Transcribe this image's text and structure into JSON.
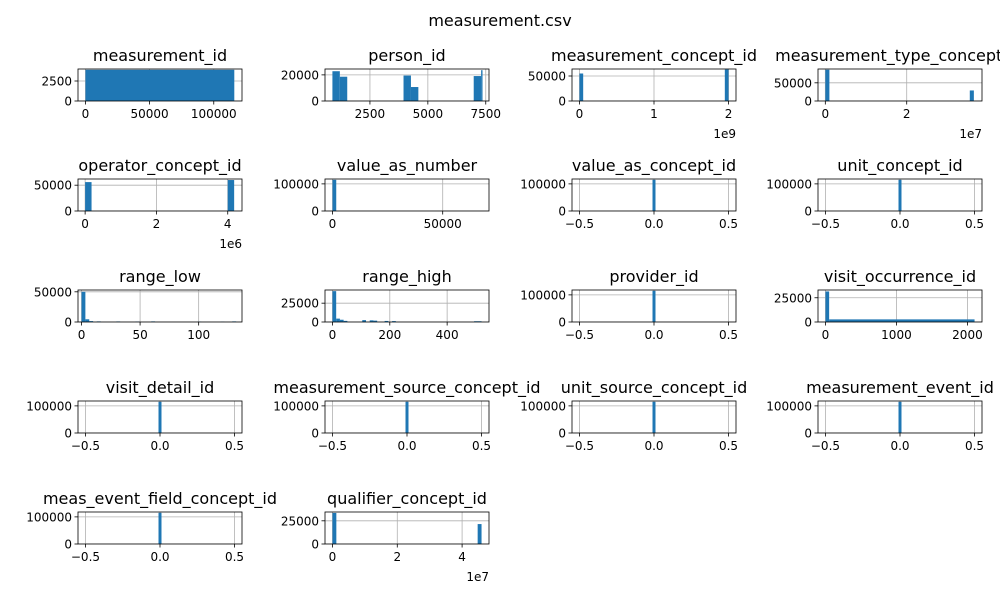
{
  "title": "measurement.csv",
  "colors": {
    "bar": "#1f77b4",
    "grid": "#b0b0b0",
    "axis": "#000000",
    "background": "#ffffff"
  },
  "chart_data": [
    {
      "type": "bar",
      "title": "measurement_id",
      "xlim": [
        -5800,
        122000
      ],
      "ylim": [
        0,
        4000
      ],
      "xticks": [
        0,
        50000,
        100000
      ],
      "xtick_labels": [
        "0",
        "50000",
        "100000"
      ],
      "yticks": [
        0,
        2500
      ],
      "ytick_labels": [
        "0",
        "2500"
      ],
      "bins": [
        [
          0,
          116000,
          3900
        ]
      ]
    },
    {
      "type": "bar",
      "title": "person_id",
      "xlim": [
        560,
        7640
      ],
      "ylim": [
        0,
        24500
      ],
      "xticks": [
        2500,
        5000,
        7500
      ],
      "xtick_labels": [
        "2500",
        "5000",
        "7500"
      ],
      "yticks": [
        0,
        20000
      ],
      "ytick_labels": [
        "0",
        "20000"
      ],
      "bins": [
        [
          880,
          1200,
          22800
        ],
        [
          1200,
          1520,
          18600
        ],
        [
          3950,
          4270,
          19500
        ],
        [
          4270,
          4590,
          10700
        ],
        [
          6980,
          7300,
          19100
        ],
        [
          7300,
          7330,
          23600
        ]
      ]
    },
    {
      "type": "bar",
      "title": "measurement_concept_id",
      "xlim": [
        -0.1,
        2.1
      ],
      "ylim": [
        0,
        64000
      ],
      "xticks": [
        0,
        1,
        2
      ],
      "xtick_labels": [
        "0",
        "1",
        "2"
      ],
      "x_offset_label": "1e9",
      "yticks": [
        0,
        50000
      ],
      "ytick_labels": [
        "0",
        "50000"
      ],
      "bins": [
        [
          0,
          0.05,
          55000
        ],
        [
          1.95,
          2.0,
          63000
        ]
      ]
    },
    {
      "type": "bar",
      "title": "measurement_type_concept_id",
      "xlim": [
        -0.18,
        3.85
      ],
      "ylim": [
        0,
        88000
      ],
      "xticks": [
        0,
        2
      ],
      "xtick_labels": [
        "0",
        "2"
      ],
      "x_offset_label": "1e7",
      "yticks": [
        0,
        50000
      ],
      "ytick_labels": [
        "0",
        "50000"
      ],
      "bins": [
        [
          0,
          0.1,
          86000
        ],
        [
          3.55,
          3.65,
          29000
        ]
      ]
    },
    {
      "type": "bar",
      "title": "operator_concept_id",
      "xlim": [
        -0.2,
        4.4
      ],
      "ylim": [
        0,
        62000
      ],
      "xticks": [
        0,
        2,
        4
      ],
      "xtick_labels": [
        "0",
        "2",
        "4"
      ],
      "x_offset_label": "1e6",
      "yticks": [
        0,
        50000
      ],
      "ytick_labels": [
        "0",
        "50000"
      ],
      "bins": [
        [
          0,
          0.18,
          56000
        ],
        [
          4.0,
          4.18,
          60000
        ]
      ]
    },
    {
      "type": "bar",
      "title": "value_as_number",
      "xlim": [
        -3400,
        71000
      ],
      "ylim": [
        0,
        118000
      ],
      "xticks": [
        0,
        50000
      ],
      "xtick_labels": [
        "0",
        "50000"
      ],
      "yticks": [
        0,
        100000
      ],
      "ytick_labels": [
        "0",
        "100000"
      ],
      "bins": [
        [
          0,
          1700,
          115000
        ]
      ]
    },
    {
      "type": "bar",
      "title": "value_as_concept_id",
      "xlim": [
        -0.55,
        0.55
      ],
      "ylim": [
        0,
        118000
      ],
      "xticks": [
        -0.5,
        0,
        0.5
      ],
      "xtick_labels": [
        "−0.5",
        "0.0",
        "0.5"
      ],
      "yticks": [
        0,
        100000
      ],
      "ytick_labels": [
        "0",
        "100000"
      ],
      "bins": [
        [
          -0.01,
          0.01,
          115000
        ]
      ]
    },
    {
      "type": "bar",
      "title": "unit_concept_id",
      "xlim": [
        -0.55,
        0.55
      ],
      "ylim": [
        0,
        118000
      ],
      "xticks": [
        -0.5,
        0,
        0.5
      ],
      "xtick_labels": [
        "−0.5",
        "0.0",
        "0.5"
      ],
      "yticks": [
        0,
        100000
      ],
      "ytick_labels": [
        "0",
        "100000"
      ],
      "bins": [
        [
          -0.01,
          0.01,
          115000
        ]
      ]
    },
    {
      "type": "bar",
      "title": "range_low",
      "xlim": [
        -3,
        137
      ],
      "ylim": [
        0,
        53000
      ],
      "xticks": [
        0,
        50,
        100
      ],
      "xtick_labels": [
        "0",
        "50",
        "100"
      ],
      "yticks": [
        0,
        50000
      ],
      "ytick_labels": [
        "0",
        "50000"
      ],
      "bins": [
        [
          0,
          3.3,
          50000
        ],
        [
          3.3,
          6.6,
          4500
        ],
        [
          6.6,
          9.9,
          1500
        ],
        [
          13,
          16.4,
          1000
        ],
        [
          29.7,
          33,
          900
        ],
        [
          46,
          49.4,
          700
        ],
        [
          59.5,
          62.8,
          1000
        ],
        [
          99,
          102.3,
          600
        ],
        [
          118.8,
          122,
          500
        ],
        [
          128.7,
          132,
          1000
        ]
      ]
    },
    {
      "type": "bar",
      "title": "range_high",
      "xlim": [
        -26,
        546
      ],
      "ylim": [
        0,
        42500
      ],
      "xticks": [
        0,
        200,
        400
      ],
      "xtick_labels": [
        "0",
        "200",
        "400"
      ],
      "yticks": [
        0,
        25000
      ],
      "ytick_labels": [
        "0",
        "25000"
      ],
      "bins": [
        [
          0,
          13,
          41000
        ],
        [
          13,
          26,
          4500
        ],
        [
          26,
          39,
          3000
        ],
        [
          39,
          52,
          1500
        ],
        [
          104,
          117,
          2500
        ],
        [
          130,
          143,
          2200
        ],
        [
          143,
          156,
          1800
        ],
        [
          182,
          195,
          1400
        ],
        [
          208,
          221,
          1200
        ],
        [
          494,
          520,
          1000
        ]
      ]
    },
    {
      "type": "bar",
      "title": "provider_id",
      "xlim": [
        -0.55,
        0.55
      ],
      "ylim": [
        0,
        118000
      ],
      "xticks": [
        -0.5,
        0,
        0.5
      ],
      "xtick_labels": [
        "−0.5",
        "0.0",
        "0.5"
      ],
      "yticks": [
        0,
        100000
      ],
      "ytick_labels": [
        "0",
        "100000"
      ],
      "bins": [
        [
          -0.01,
          0.01,
          115000
        ]
      ]
    },
    {
      "type": "bar",
      "title": "visit_occurrence_id",
      "xlim": [
        -105,
        2205
      ],
      "ylim": [
        0,
        33000
      ],
      "xticks": [
        0,
        1000,
        2000
      ],
      "xtick_labels": [
        "0",
        "1000",
        "2000"
      ],
      "yticks": [
        0,
        25000
      ],
      "ytick_labels": [
        "0",
        "25000"
      ],
      "bins": [
        [
          0,
          52,
          31500
        ],
        [
          52,
          2100,
          2700
        ]
      ]
    },
    {
      "type": "bar",
      "title": "visit_detail_id",
      "xlim": [
        -0.55,
        0.55
      ],
      "ylim": [
        0,
        118000
      ],
      "xticks": [
        -0.5,
        0,
        0.5
      ],
      "xtick_labels": [
        "−0.5",
        "0.0",
        "0.5"
      ],
      "yticks": [
        0,
        100000
      ],
      "ytick_labels": [
        "0",
        "100000"
      ],
      "bins": [
        [
          -0.01,
          0.01,
          115000
        ]
      ]
    },
    {
      "type": "bar",
      "title": "measurement_source_concept_id",
      "xlim": [
        -0.55,
        0.55
      ],
      "ylim": [
        0,
        118000
      ],
      "xticks": [
        -0.5,
        0,
        0.5
      ],
      "xtick_labels": [
        "−0.5",
        "0.0",
        "0.5"
      ],
      "yticks": [
        0,
        100000
      ],
      "ytick_labels": [
        "0",
        "100000"
      ],
      "bins": [
        [
          -0.01,
          0.01,
          115000
        ]
      ]
    },
    {
      "type": "bar",
      "title": "unit_source_concept_id",
      "xlim": [
        -0.55,
        0.55
      ],
      "ylim": [
        0,
        118000
      ],
      "xticks": [
        -0.5,
        0,
        0.5
      ],
      "xtick_labels": [
        "−0.5",
        "0.0",
        "0.5"
      ],
      "yticks": [
        0,
        100000
      ],
      "ytick_labels": [
        "0",
        "100000"
      ],
      "bins": [
        [
          -0.01,
          0.01,
          115000
        ]
      ]
    },
    {
      "type": "bar",
      "title": "measurement_event_id",
      "xlim": [
        -0.55,
        0.55
      ],
      "ylim": [
        0,
        118000
      ],
      "xticks": [
        -0.5,
        0,
        0.5
      ],
      "xtick_labels": [
        "−0.5",
        "0.0",
        "0.5"
      ],
      "yticks": [
        0,
        100000
      ],
      "ytick_labels": [
        "0",
        "100000"
      ],
      "bins": [
        [
          -0.01,
          0.01,
          115000
        ]
      ]
    },
    {
      "type": "bar",
      "title": "meas_event_field_concept_id",
      "xlim": [
        -0.55,
        0.55
      ],
      "ylim": [
        0,
        118000
      ],
      "xticks": [
        -0.5,
        0,
        0.5
      ],
      "xtick_labels": [
        "−0.5",
        "0.0",
        "0.5"
      ],
      "yticks": [
        0,
        100000
      ],
      "ytick_labels": [
        "0",
        "100000"
      ],
      "bins": [
        [
          -0.01,
          0.01,
          115000
        ]
      ]
    },
    {
      "type": "bar",
      "title": "qualifier_concept_id",
      "xlim": [
        -0.23,
        4.83
      ],
      "ylim": [
        0,
        34500
      ],
      "xticks": [
        0,
        2,
        4
      ],
      "xtick_labels": [
        "0",
        "2",
        "4"
      ],
      "x_offset_label": "1e7",
      "yticks": [
        0,
        25000
      ],
      "ytick_labels": [
        "0",
        "25000"
      ],
      "bins": [
        [
          0,
          0.12,
          33500
        ],
        [
          4.48,
          4.6,
          21500
        ]
      ]
    }
  ]
}
